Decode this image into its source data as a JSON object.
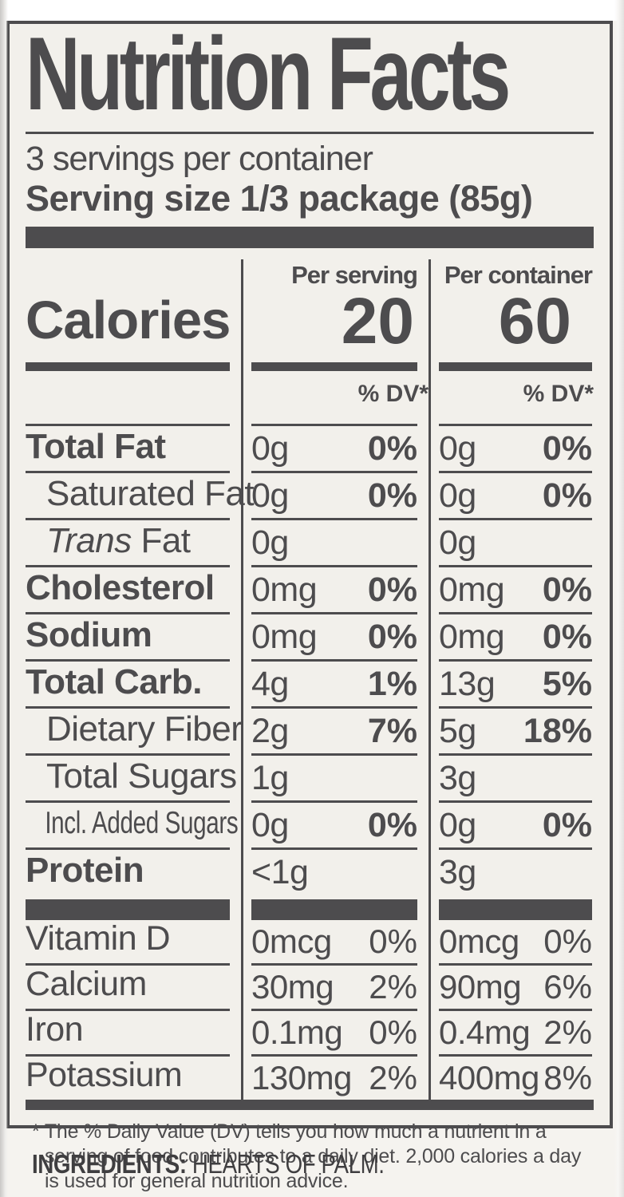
{
  "colors": {
    "ink": "#4d4c4e",
    "label_bg": "#f2f0eb",
    "page_bg": "#f5f3ef"
  },
  "label": {
    "title": "Nutrition Facts",
    "servings_per_container": "3 servings per container",
    "serving_size": "Serving size 1/3 package (85g)"
  },
  "calories": {
    "label": "Calories",
    "per_serving_header": "Per serving",
    "per_container_header": "Per container",
    "per_serving_value": "20",
    "per_container_value": "60",
    "dv_header": "% DV*"
  },
  "rows": [
    {
      "name": "Total Fat",
      "bold": true,
      "indent": 0,
      "s_amt": "0g",
      "s_dv": "0%",
      "c_amt": "0g",
      "c_dv": "0%"
    },
    {
      "name": "Saturated Fat",
      "bold": false,
      "indent": 1,
      "s_amt": "0g",
      "s_dv": "0%",
      "c_amt": "0g",
      "c_dv": "0%"
    },
    {
      "name_italic": "Trans",
      "name_rest": " Fat",
      "bold": false,
      "indent": 1,
      "s_amt": "0g",
      "s_dv": "",
      "c_amt": "0g",
      "c_dv": ""
    },
    {
      "name": "Cholesterol",
      "bold": true,
      "indent": 0,
      "s_amt": "0mg",
      "s_dv": "0%",
      "c_amt": "0mg",
      "c_dv": "0%"
    },
    {
      "name": "Sodium",
      "bold": true,
      "indent": 0,
      "s_amt": "0mg",
      "s_dv": "0%",
      "c_amt": "0mg",
      "c_dv": "0%"
    },
    {
      "name": "Total Carb.",
      "bold": true,
      "indent": 0,
      "s_amt": "4g",
      "s_dv": "1%",
      "c_amt": "13g",
      "c_dv": "5%"
    },
    {
      "name": "Dietary Fiber",
      "bold": false,
      "indent": 1,
      "s_amt": "2g",
      "s_dv": "7%",
      "c_amt": "5g",
      "c_dv": "18%"
    },
    {
      "name": "Total Sugars",
      "bold": false,
      "indent": 1,
      "s_amt": "1g",
      "s_dv": "",
      "c_amt": "3g",
      "c_dv": ""
    },
    {
      "name": "Incl. Added Sugars",
      "bold": false,
      "indent": 2,
      "condensed": true,
      "s_amt": "0g",
      "s_dv": "0%",
      "c_amt": "0g",
      "c_dv": "0%"
    },
    {
      "name": "Protein",
      "bold": true,
      "indent": 0,
      "s_amt": "<1g",
      "s_dv": "",
      "c_amt": "3g",
      "c_dv": ""
    }
  ],
  "vitamins": [
    {
      "name": "Vitamin D",
      "s_amt": "0mcg",
      "s_dv": "0%",
      "c_amt": "0mcg",
      "c_dv": "0%"
    },
    {
      "name": "Calcium",
      "s_amt": "30mg",
      "s_dv": "2%",
      "c_amt": "90mg",
      "c_dv": "6%"
    },
    {
      "name": "Iron",
      "s_amt": "0.1mg",
      "s_dv": "0%",
      "c_amt": "0.4mg",
      "c_dv": "2%"
    },
    {
      "name": "Potassium",
      "s_amt": "130mg",
      "s_dv": "2%",
      "c_amt": "400mg",
      "c_dv": "8%"
    }
  ],
  "footnote": {
    "marker": "*",
    "lines": [
      "The % Daily Value (DV) tells you how much a nutrient in a",
      "serving of food contributes to a daily diet. 2,000 calories a day",
      "is used for general nutrition advice."
    ]
  },
  "ingredients": {
    "label": "INGREDIENTS:",
    "value": "HEARTS OF PALM."
  }
}
